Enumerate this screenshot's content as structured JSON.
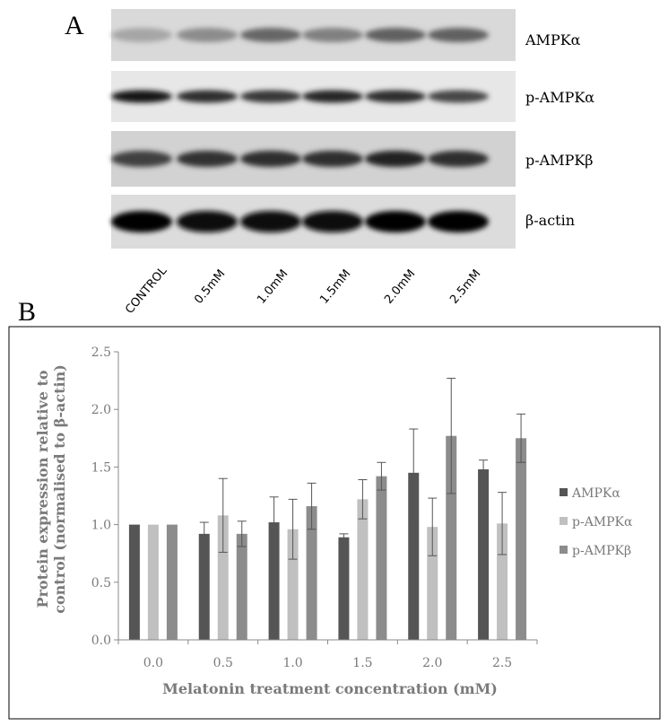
{
  "panel_a": {
    "letter": "A",
    "band_labels": [
      "AMPKα",
      "p-AMPKα",
      "p-AMPKβ",
      "β-actin"
    ],
    "lane_labels": [
      "CONTROL",
      "0.5mM",
      "1.0mM",
      "1.5mM",
      "2.0mM",
      "2.5mM"
    ]
  },
  "panel_b": {
    "letter": "B"
  },
  "chart_data": {
    "type": "bar",
    "categories": [
      "0.0",
      "0.5",
      "1.0",
      "1.5",
      "2.0",
      "2.5"
    ],
    "series": [
      {
        "name": "AMPKα",
        "color": "#555555",
        "values": [
          1.0,
          0.92,
          1.02,
          0.89,
          1.45,
          1.48
        ],
        "errors": [
          0.0,
          0.1,
          0.22,
          0.03,
          0.38,
          0.08
        ]
      },
      {
        "name": "p-AMPKα",
        "color": "#c0c0c0",
        "values": [
          1.0,
          1.08,
          0.96,
          1.22,
          0.98,
          1.01
        ],
        "errors": [
          0.0,
          0.32,
          0.26,
          0.17,
          0.25,
          0.27
        ]
      },
      {
        "name": "p-AMPKβ",
        "color": "#8c8c8c",
        "values": [
          1.0,
          0.92,
          1.16,
          1.42,
          1.77,
          1.75
        ],
        "errors": [
          0.0,
          0.11,
          0.2,
          0.12,
          0.5,
          0.21
        ]
      }
    ],
    "xlabel": "Melatonin treatment concentration (mM)",
    "ylabel_lines": [
      "Protein expression relative to",
      "control (normalised to β-actin)"
    ],
    "ylim": [
      0,
      2.5
    ],
    "yticks": [
      "0.0",
      "0.5",
      "1.0",
      "1.5",
      "2.0",
      "2.5"
    ],
    "grid": false,
    "legend": "right"
  }
}
